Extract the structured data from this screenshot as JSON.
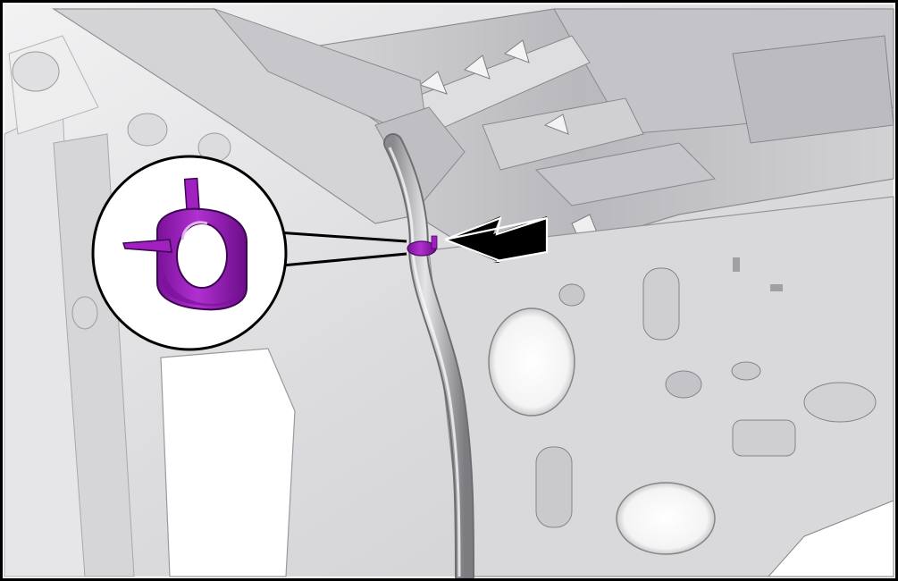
{
  "figure": {
    "kind": "service-illustration",
    "highlight_color": "#a020c0",
    "frame_color": "#000000",
    "part_shade_light": "#e8e8ea",
    "part_shade_mid": "#c9c9cc",
    "part_shade_dark": "#8e8e92",
    "callout": {
      "icon": "hose-clamp-icon",
      "arrow": "double-arrow-left-icon"
    }
  }
}
